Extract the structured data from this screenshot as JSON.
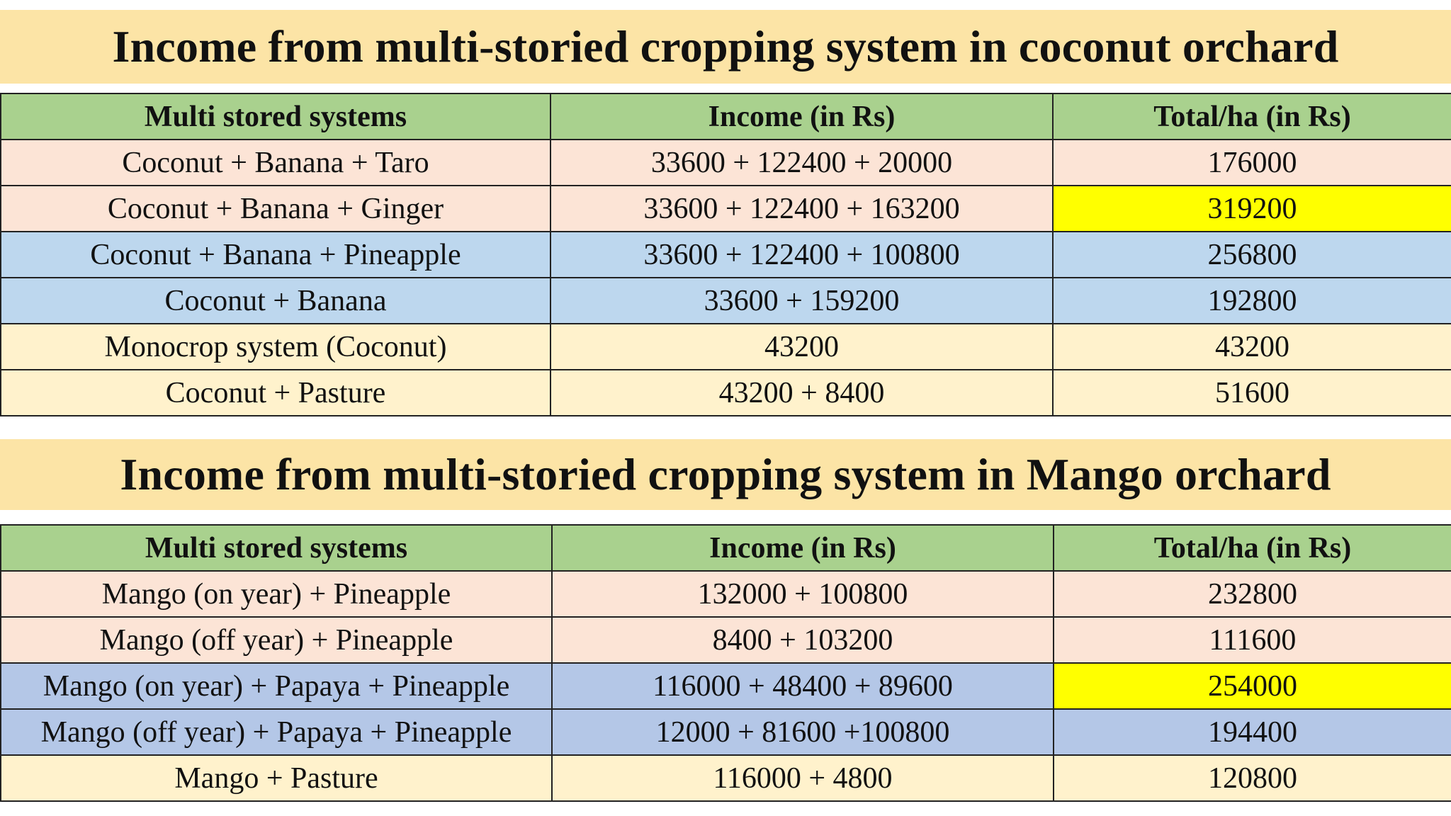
{
  "tables": [
    {
      "title": "Income from multi-storied cropping system in coconut orchard",
      "headers": [
        "Multi stored systems",
        "Income (in Rs)",
        "Total/ha (in Rs)"
      ],
      "rows": [
        {
          "system": "Coconut + Banana + Taro",
          "income": "33600 + 122400 + 20000",
          "total": "176000",
          "row_color": "#fce4d6",
          "highlight": false
        },
        {
          "system": "Coconut + Banana + Ginger",
          "income": "33600 + 122400 + 163200",
          "total": "319200",
          "row_color": "#fce4d6",
          "highlight": true
        },
        {
          "system": "Coconut + Banana + Pineapple",
          "income": "33600 + 122400 + 100800",
          "total": "256800",
          "row_color": "#bdd7ee",
          "highlight": false
        },
        {
          "system": "Coconut + Banana",
          "income": "33600 + 159200",
          "total": "192800",
          "row_color": "#bdd7ee",
          "highlight": false
        },
        {
          "system": "Monocrop system (Coconut)",
          "income": "43200",
          "total": "43200",
          "row_color": "#fff2cc",
          "highlight": false
        },
        {
          "system": "Coconut + Pasture",
          "income": "43200 + 8400",
          "total": "51600",
          "row_color": "#fff2cc",
          "highlight": false
        }
      ]
    },
    {
      "title": "Income from multi-storied cropping system in Mango orchard",
      "headers": [
        "Multi stored systems",
        "Income (in Rs)",
        "Total/ha (in Rs)"
      ],
      "rows": [
        {
          "system": "Mango (on year) + Pineapple",
          "income": "132000 + 100800",
          "total": "232800",
          "row_color": "#fce4d6",
          "highlight": false
        },
        {
          "system": "Mango (off year) + Pineapple",
          "income": "8400 + 103200",
          "total": "111600",
          "row_color": "#fce4d6",
          "highlight": false
        },
        {
          "system": "Mango (on year) + Papaya + Pineapple",
          "income": "116000 + 48400 + 89600",
          "total": "254000",
          "row_color": "#b4c7e7",
          "highlight": true
        },
        {
          "system": "Mango (off year) + Papaya + Pineapple",
          "income": "12000 + 81600 +100800",
          "total": "194400",
          "row_color": "#b4c7e7",
          "highlight": false
        },
        {
          "system": "Mango + Pasture",
          "income": "116000 + 4800",
          "total": "120800",
          "row_color": "#fff2cc",
          "highlight": false
        }
      ]
    }
  ],
  "colors": {
    "banner": "#fce4a6",
    "header": "#a9d18e",
    "highlight": "#ffff00"
  }
}
